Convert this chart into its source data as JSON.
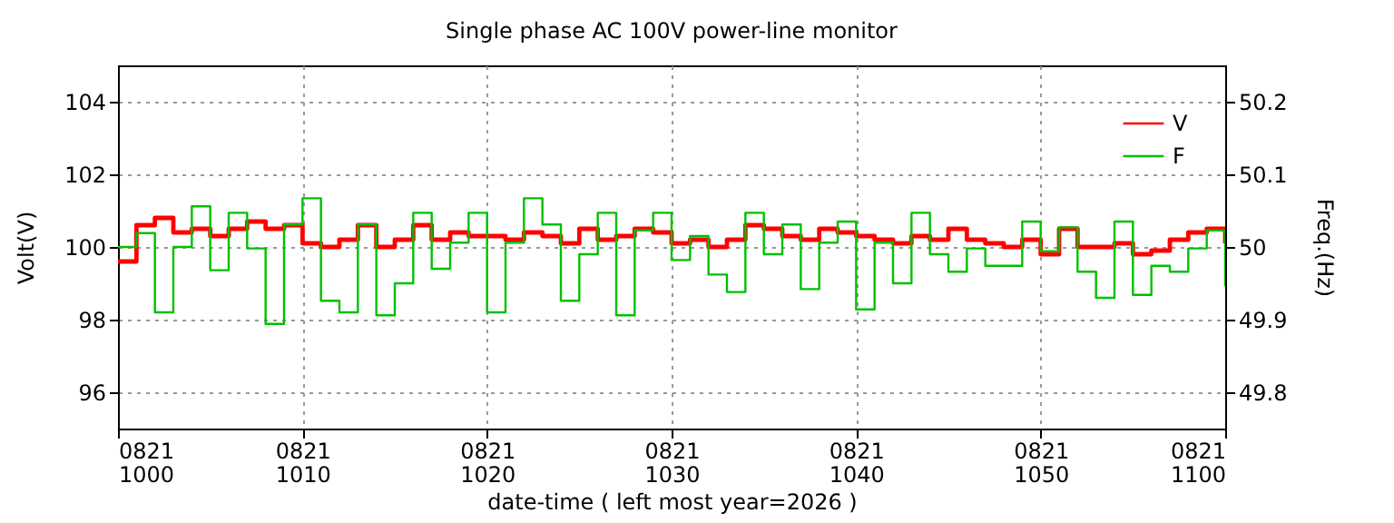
{
  "chart_data": {
    "type": "step",
    "title": "Single phase AC 100V power-line monitor",
    "xlabel": "date-time ( left most year=2026 )",
    "ylabel": "Volt(V)",
    "y2label": "Freq.(Hz)",
    "xlim": [
      "2026-08-21T10:00",
      "2026-08-21T11:00"
    ],
    "xticks": [
      {
        "value": "2026-08-21T10:00",
        "label": "0821\n1000"
      },
      {
        "value": "2026-08-21T10:10",
        "label": "0821\n1010"
      },
      {
        "value": "2026-08-21T10:20",
        "label": "0821\n1020"
      },
      {
        "value": "2026-08-21T10:30",
        "label": "0821\n1030"
      },
      {
        "value": "2026-08-21T10:40",
        "label": "0821\n1040"
      },
      {
        "value": "2026-08-21T10:50",
        "label": "0821\n1050"
      },
      {
        "value": "2026-08-21T11:00",
        "label": "0821\n1100"
      }
    ],
    "ylim": [
      95,
      105
    ],
    "yticks": [
      96,
      98,
      100,
      102,
      104
    ],
    "y2lim": [
      49.75,
      50.25
    ],
    "y2ticks": [
      49.8,
      49.9,
      50,
      50.1,
      50.2
    ],
    "grid": true,
    "legend": "top right",
    "line_style": "solid",
    "marker": "none",
    "series": [
      {
        "name": "V",
        "color": "#ff0000",
        "values": [
          99.6,
          100.6,
          100.8,
          100.4,
          100.5,
          100.3,
          100.5,
          100.7,
          100.5,
          100.6,
          100.1,
          100.0,
          100.2,
          100.6,
          100.0,
          100.2,
          100.6,
          100.2,
          100.4,
          100.3,
          100.3,
          100.2,
          100.4,
          100.3,
          100.1,
          100.5,
          100.2,
          100.3,
          100.5,
          100.4,
          100.1,
          100.2,
          100.0,
          100.2,
          100.6,
          100.5,
          100.3,
          100.2,
          100.5,
          100.4,
          100.3,
          100.2,
          100.1,
          100.3,
          100.2,
          100.5,
          100.2,
          100.1,
          100.0,
          100.2,
          99.8,
          100.5,
          100.0,
          100.0,
          100.1,
          99.8,
          99.9,
          100.2,
          100.4,
          100.5,
          100.1
        ]
      },
      {
        "name": "F",
        "color": "#00c000",
        "axis": "y2",
        "values": [
          50.0,
          50.019,
          49.91,
          50.0,
          50.056,
          49.968,
          50.047,
          49.998,
          49.894,
          50.031,
          50.067,
          49.926,
          49.91,
          50.031,
          49.906,
          49.95,
          50.047,
          49.97,
          50.006,
          50.047,
          49.91,
          50.006,
          50.067,
          50.031,
          49.926,
          49.99,
          50.047,
          49.906,
          50.023,
          50.047,
          49.982,
          50.015,
          49.962,
          49.938,
          50.047,
          49.99,
          50.031,
          49.942,
          50.006,
          50.035,
          49.914,
          50.006,
          49.95,
          50.047,
          49.99,
          49.966,
          49.998,
          49.974,
          49.974,
          50.035,
          49.994,
          50.027,
          49.966,
          49.93,
          50.035,
          49.934,
          49.974,
          49.966,
          49.998,
          50.023,
          49.946
        ]
      }
    ],
    "x": [
      "2026-08-21T10:00",
      "2026-08-21T10:01",
      "2026-08-21T10:02",
      "2026-08-21T10:03",
      "2026-08-21T10:04",
      "2026-08-21T10:05",
      "2026-08-21T10:06",
      "2026-08-21T10:07",
      "2026-08-21T10:08",
      "2026-08-21T10:09",
      "2026-08-21T10:10",
      "2026-08-21T10:11",
      "2026-08-21T10:12",
      "2026-08-21T10:13",
      "2026-08-21T10:14",
      "2026-08-21T10:15",
      "2026-08-21T10:16",
      "2026-08-21T10:17",
      "2026-08-21T10:18",
      "2026-08-21T10:19",
      "2026-08-21T10:20",
      "2026-08-21T10:21",
      "2026-08-21T10:22",
      "2026-08-21T10:23",
      "2026-08-21T10:24",
      "2026-08-21T10:25",
      "2026-08-21T10:26",
      "2026-08-21T10:27",
      "2026-08-21T10:28",
      "2026-08-21T10:29",
      "2026-08-21T10:30",
      "2026-08-21T10:31",
      "2026-08-21T10:32",
      "2026-08-21T10:33",
      "2026-08-21T10:34",
      "2026-08-21T10:35",
      "2026-08-21T10:36",
      "2026-08-21T10:37",
      "2026-08-21T10:38",
      "2026-08-21T10:39",
      "2026-08-21T10:40",
      "2026-08-21T10:41",
      "2026-08-21T10:42",
      "2026-08-21T10:43",
      "2026-08-21T10:44",
      "2026-08-21T10:45",
      "2026-08-21T10:46",
      "2026-08-21T10:47",
      "2026-08-21T10:48",
      "2026-08-21T10:49",
      "2026-08-21T10:50",
      "2026-08-21T10:51",
      "2026-08-21T10:52",
      "2026-08-21T10:53",
      "2026-08-21T10:54",
      "2026-08-21T10:55",
      "2026-08-21T10:56",
      "2026-08-21T10:57",
      "2026-08-21T10:58",
      "2026-08-21T10:59",
      "2026-08-21T11:00"
    ]
  }
}
